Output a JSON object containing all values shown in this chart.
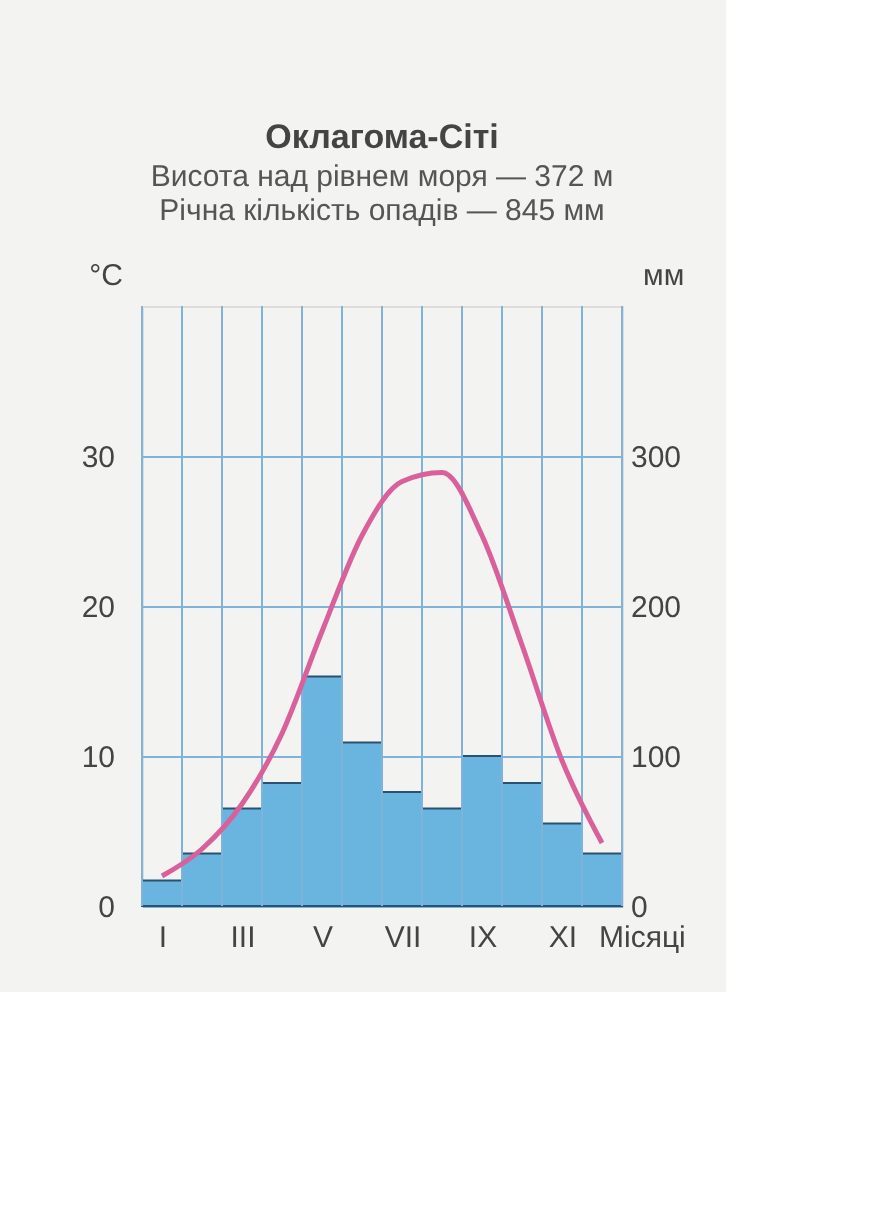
{
  "chart_data": {
    "type": "bar",
    "title": "Оклагома-Сіті",
    "subtitle": "Висота над рівнем моря — 372 м\nРічна кількість опадів — 845 мм",
    "categories": [
      "I",
      null,
      "III",
      null,
      "V",
      null,
      "VII",
      null,
      "IX",
      null,
      "XI",
      null
    ],
    "xlabel": "Місяці",
    "ylabel": "°C",
    "y2label": "мм",
    "series": [
      {
        "type": "line",
        "color": "#d9609a",
        "values": [
          2,
          3.8,
          6.8,
          11.5,
          18.3,
          24.7,
          28.3,
          28.9,
          24.7,
          17.4,
          9.7,
          4.2
        ]
      },
      {
        "axis": "y2",
        "color": "#6ab4e0",
        "values": [
          17,
          35,
          65,
          82,
          153,
          109,
          76,
          65,
          100,
          82,
          55,
          35
        ]
      }
    ],
    "ylim": [
      0,
      40
    ],
    "yticks": [
      0,
      10,
      20,
      30
    ],
    "y2lim": [
      0,
      400
    ],
    "y2ticks": [
      0,
      100,
      200,
      300
    ],
    "grid": true,
    "marker": "none",
    "line_style": "solid"
  }
}
